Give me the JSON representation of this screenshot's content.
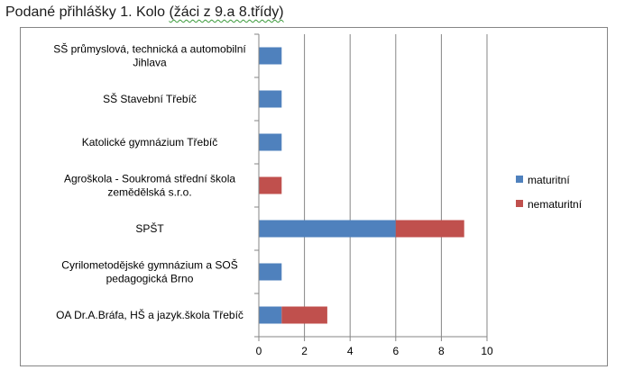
{
  "page": {
    "title_main": "Podané přihlášky 1. Kolo ",
    "title_paren": "(žáci z 9.a 8.třídy)"
  },
  "chart_data": {
    "type": "bar",
    "orientation": "horizontal",
    "stacked": true,
    "title": "",
    "xlabel": "",
    "ylabel": "",
    "categories": [
      [
        "SŠ průmyslová, technická a automobilní",
        "Jihlava"
      ],
      [
        "SŠ Stavební Třebíč"
      ],
      [
        "Katolické gymnázium Třebíč"
      ],
      [
        "Agroškola - Soukromá střední škola",
        "zemědělská s.r.o."
      ],
      [
        "SPŠT"
      ],
      [
        "Cyrilometodějské gymnázium a SOŠ",
        "pedagogická Brno"
      ],
      [
        "OA Dr.A.Bráfa, HŠ a jazyk.škola Třebíč"
      ]
    ],
    "series": [
      {
        "name": "maturitní",
        "color": "#4f81bd",
        "values": [
          1,
          1,
          1,
          0,
          6,
          1,
          1
        ]
      },
      {
        "name": "nematuritní",
        "color": "#c0504d",
        "values": [
          0,
          0,
          0,
          1,
          3,
          0,
          2
        ]
      }
    ],
    "xlim": [
      0,
      10
    ],
    "xticks": [
      0,
      2,
      4,
      6,
      8,
      10
    ],
    "grid": "vertical major",
    "legend": "right"
  }
}
